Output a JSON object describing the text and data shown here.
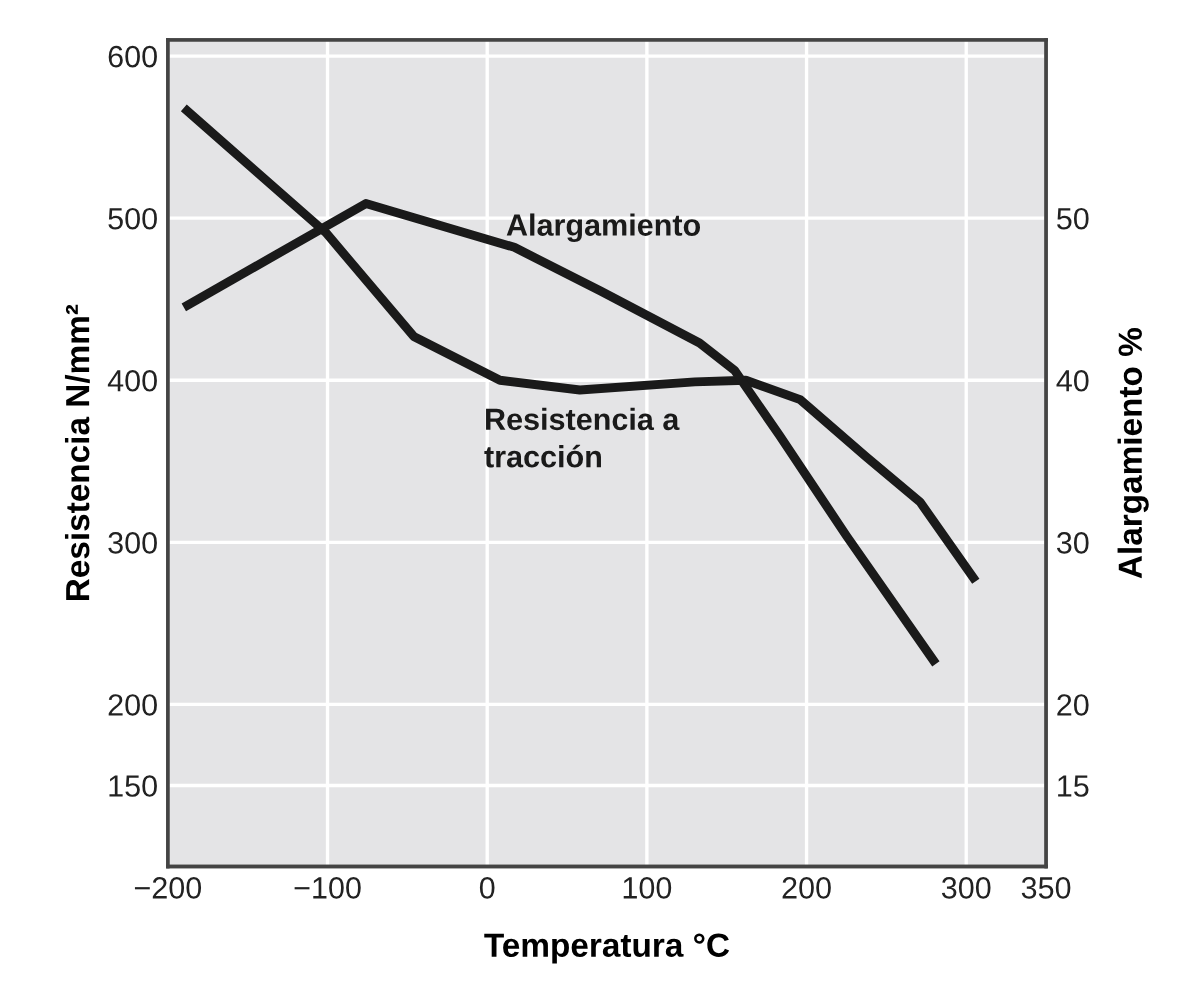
{
  "chart_data": {
    "type": "line",
    "xlabel": "Temperatura °C",
    "ylabel": "Resistencia N/mm²",
    "y2label": "Alargamiento %",
    "xlim": [
      -200,
      350
    ],
    "xticks": [
      -200,
      -100,
      0,
      100,
      200,
      300,
      350
    ],
    "ylim": [
      100,
      610
    ],
    "yticks": [
      150,
      200,
      300,
      400,
      500,
      600
    ],
    "y2lim": [
      10,
      61
    ],
    "y2ticks": [
      15,
      20,
      30,
      40,
      50
    ],
    "grid": true,
    "legend": false,
    "marker": "none",
    "line_style": "solid",
    "series": [
      {
        "name": "Resistencia a\ntracción",
        "color": "#1a1a1a",
        "x": [
          -190,
          -101,
          -46,
          8,
          58,
          130,
          162,
          196,
          237,
          271,
          306
        ],
        "values": [
          568,
          491,
          427,
          400,
          394,
          399,
          400,
          388,
          353,
          325,
          276
        ]
      },
      {
        "name": "Alargamiento",
        "color": "#1a1a1a",
        "axis": "y2",
        "x": [
          -190,
          -76,
          17,
          71,
          133,
          155,
          183,
          225,
          281
        ],
        "values": [
          44.5,
          50.9,
          48.2,
          45.5,
          42.3,
          40.6,
          36.6,
          30.4,
          22.5
        ]
      }
    ]
  }
}
